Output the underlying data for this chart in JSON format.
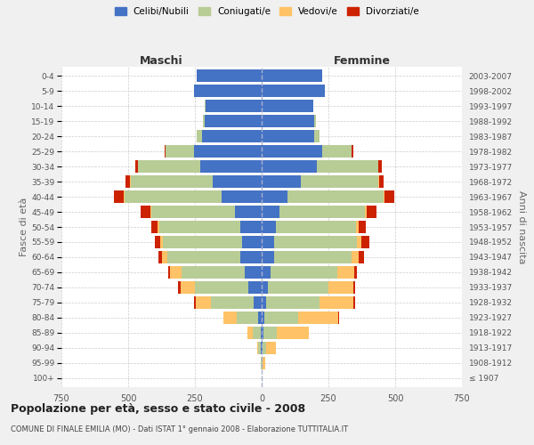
{
  "age_groups": [
    "100+",
    "95-99",
    "90-94",
    "85-89",
    "80-84",
    "75-79",
    "70-74",
    "65-69",
    "60-64",
    "55-59",
    "50-54",
    "45-49",
    "40-44",
    "35-39",
    "30-34",
    "25-29",
    "20-24",
    "15-19",
    "10-14",
    "5-9",
    "0-4"
  ],
  "birth_years": [
    "≤ 1907",
    "1908-1912",
    "1913-1917",
    "1918-1922",
    "1923-1927",
    "1928-1932",
    "1933-1937",
    "1938-1942",
    "1943-1947",
    "1948-1952",
    "1953-1957",
    "1958-1962",
    "1963-1967",
    "1968-1972",
    "1973-1977",
    "1978-1982",
    "1983-1987",
    "1988-1992",
    "1993-1997",
    "1998-2002",
    "2003-2007"
  ],
  "colors": {
    "celibe": "#4472c4",
    "coniugato": "#b8cc96",
    "vedovo": "#ffc266",
    "divorziato": "#cc2200"
  },
  "maschi": {
    "celibe": [
      0,
      0,
      2,
      5,
      15,
      30,
      50,
      65,
      80,
      75,
      80,
      100,
      150,
      185,
      230,
      255,
      225,
      215,
      210,
      255,
      245
    ],
    "coniugato": [
      0,
      2,
      10,
      30,
      80,
      160,
      200,
      235,
      275,
      295,
      305,
      315,
      365,
      305,
      235,
      105,
      18,
      4,
      2,
      0,
      0
    ],
    "vedovo": [
      0,
      0,
      5,
      18,
      48,
      58,
      52,
      42,
      18,
      9,
      5,
      3,
      2,
      2,
      0,
      0,
      0,
      0,
      0,
      0,
      0
    ],
    "divorziato": [
      0,
      0,
      0,
      0,
      0,
      5,
      10,
      9,
      14,
      20,
      24,
      34,
      38,
      18,
      9,
      4,
      2,
      0,
      0,
      0,
      0
    ]
  },
  "femmine": {
    "nubile": [
      0,
      0,
      2,
      5,
      10,
      18,
      22,
      32,
      48,
      48,
      52,
      68,
      98,
      148,
      208,
      228,
      198,
      198,
      192,
      238,
      228
    ],
    "coniugata": [
      0,
      4,
      14,
      52,
      128,
      198,
      228,
      252,
      288,
      308,
      302,
      318,
      358,
      288,
      228,
      108,
      18,
      4,
      2,
      0,
      0
    ],
    "vedova": [
      1,
      10,
      38,
      118,
      148,
      128,
      92,
      62,
      28,
      18,
      9,
      7,
      4,
      3,
      2,
      2,
      0,
      0,
      0,
      0,
      0
    ],
    "divorziata": [
      0,
      0,
      0,
      0,
      4,
      7,
      9,
      11,
      19,
      28,
      28,
      38,
      38,
      18,
      11,
      4,
      2,
      0,
      0,
      0,
      0
    ]
  },
  "xlim": 750,
  "xticks": [
    -750,
    -500,
    -250,
    0,
    250,
    500,
    750
  ],
  "title": "Popolazione per età, sesso e stato civile - 2008",
  "subtitle": "COMUNE DI FINALE EMILIA (MO) - Dati ISTAT 1° gennaio 2008 - Elaborazione TUTTITALIA.IT",
  "ylabel_left": "Fasce di età",
  "ylabel_right": "Anni di nascita",
  "label_maschi": "Maschi",
  "label_femmine": "Femmine",
  "legend_labels": [
    "Celibi/Nubili",
    "Coniugati/e",
    "Vedovi/e",
    "Divorziati/e"
  ],
  "bg_color": "#f0f0f0",
  "plot_bg": "#ffffff"
}
